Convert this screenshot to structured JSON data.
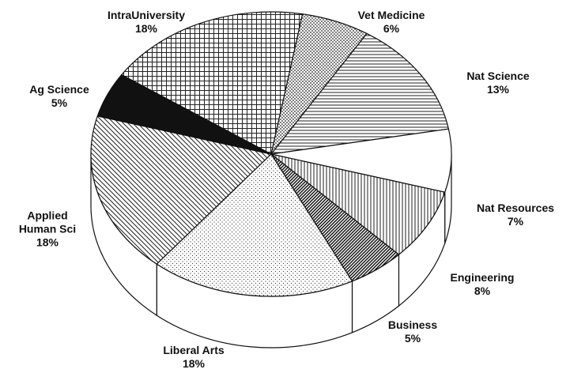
{
  "chart_data": {
    "type": "pie3d",
    "categories": [
      "IntraUniversity",
      "Vet Medicine",
      "Nat Science",
      "Nat Resources",
      "Engineering",
      "Business",
      "Liberal Arts",
      "Applied Human Sci",
      "Ag Science"
    ],
    "values": [
      18,
      6,
      13,
      7,
      8,
      5,
      18,
      18,
      5
    ],
    "value_labels": [
      "18%",
      "6%",
      "13%",
      "7%",
      "8%",
      "5%",
      "18%",
      "18%",
      "5%"
    ],
    "patterns": [
      "grid",
      "dots",
      "horizontal",
      "solid-white",
      "vertical",
      "dense-diagonal",
      "fine-dots",
      "diagonal",
      "solid-black"
    ],
    "color": "#111111"
  }
}
